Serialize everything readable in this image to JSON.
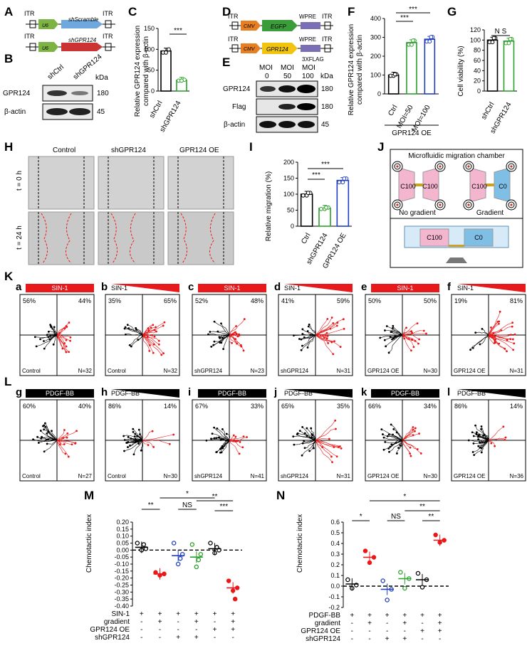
{
  "panel_letters": {
    "A": "A",
    "B": "B",
    "C": "C",
    "D": "D",
    "E": "E",
    "F": "F",
    "G": "G",
    "H": "H",
    "I": "I",
    "J": "J",
    "K": "K",
    "L": "L",
    "M": "M",
    "N": "N"
  },
  "panel_a": {
    "itr": "ITR",
    "u6": "U6",
    "construct1": "shScramble",
    "construct2": "shGPR124",
    "colors": {
      "scramble": "#6fa8dc",
      "shgpr": "#cc3333",
      "u6": "#7cb342"
    }
  },
  "panel_b": {
    "lanes": [
      "shCtrl",
      "shGPR124"
    ],
    "kda": "kDa",
    "rows": [
      {
        "label": "GPR124",
        "kda": "180"
      },
      {
        "label": "β-actin",
        "kda": "45"
      }
    ]
  },
  "panel_c": {
    "ylabel_line1": "Relative GPR124 expression",
    "ylabel_line2": "compared with β-actin",
    "yticks": [
      "0",
      "50",
      "100",
      "150"
    ],
    "categories": [
      "shCtrl",
      "shGPR124"
    ],
    "sig": "***"
  },
  "panel_d": {
    "itr": "ITR",
    "cmv": "CMV",
    "egfp": "EGFP",
    "wpre": "WPRE",
    "gpr124": "GPR124",
    "flag": "3XFLAG",
    "colors": {
      "cmv": "#e67e22",
      "egfp": "#3a9d3a",
      "gpr": "#f1c40f",
      "wpre": "#7a6fb5"
    }
  },
  "panel_e": {
    "moi_header": [
      "MOI",
      "MOI",
      "MOI"
    ],
    "moi_values": [
      "0",
      "50",
      "100"
    ],
    "kda": "kDa",
    "rows": [
      {
        "label": "GPR124",
        "kda": "180"
      },
      {
        "label": "Flag",
        "kda": "180"
      },
      {
        "label": "β-actin",
        "kda": "45"
      }
    ]
  },
  "panel_f": {
    "ylabel_line1": "Relative GPR124 expression",
    "ylabel_line2": "compared with β-actin",
    "yticks": [
      "0",
      "100",
      "200",
      "300",
      "400"
    ],
    "categories": [
      "Ctrl",
      "MOI=50",
      "MOI=100"
    ],
    "group_label": "GPR124 OE",
    "sig": [
      "***",
      "***"
    ]
  },
  "panel_g": {
    "ylabel": "Cell viability (%)",
    "yticks": [
      "0",
      "20",
      "40",
      "60",
      "80",
      "100",
      "120"
    ],
    "categories": [
      "shCtrl",
      "shGPR124"
    ],
    "sig": "N S"
  },
  "panel_h": {
    "columns": [
      "Control",
      "shGPR124",
      "GPR124 OE"
    ],
    "rows": [
      "t = 0 h",
      "t = 24 h"
    ]
  },
  "panel_i": {
    "ylabel": "Relative migration (%)",
    "yticks": [
      "0",
      "50",
      "100",
      "150",
      "200"
    ],
    "categories": [
      "Ctrl",
      "shGPR124",
      "GPR124 OE"
    ],
    "sig": [
      "***",
      "***"
    ]
  },
  "panel_j": {
    "title": "Microfluidic migration chamber",
    "c100": "C100",
    "c0": "C0",
    "no_gradient": "No gradient",
    "gradient": "Gradient"
  },
  "row_k": {
    "stimulus": "SIN-1",
    "color": "#e8191b",
    "plots": [
      {
        "id": "a",
        "left": "56%",
        "right": "44%",
        "group": "Control",
        "n": "N=32",
        "gradient": false
      },
      {
        "id": "b",
        "left": "35%",
        "right": "65%",
        "group": "Control",
        "n": "N=32",
        "gradient": true
      },
      {
        "id": "c",
        "left": "52%",
        "right": "48%",
        "group": "shGPR124",
        "n": "N=23",
        "gradient": false
      },
      {
        "id": "d",
        "left": "41%",
        "right": "59%",
        "group": "shGPR124",
        "n": "N=31",
        "gradient": true
      },
      {
        "id": "e",
        "left": "50%",
        "right": "50%",
        "group": "GPR124 OE",
        "n": "N=30",
        "gradient": false
      },
      {
        "id": "f",
        "left": "19%",
        "right": "81%",
        "group": "GPR124 OE",
        "n": "N=31",
        "gradient": true
      }
    ]
  },
  "row_l": {
    "stimulus": "PDGF-BB",
    "color": "#000000",
    "plots": [
      {
        "id": "g",
        "left": "60%",
        "right": "40%",
        "group": "Control",
        "n": "N=27",
        "gradient": false
      },
      {
        "id": "h",
        "left": "86%",
        "right": "14%",
        "group": "Control",
        "n": "N=30",
        "gradient": true
      },
      {
        "id": "i",
        "left": "67%",
        "right": "33%",
        "group": "shGPR124",
        "n": "N=41",
        "gradient": false
      },
      {
        "id": "j",
        "left": "65%",
        "right": "35%",
        "group": "shGPR124",
        "n": "N=31",
        "gradient": true
      },
      {
        "id": "k",
        "left": "66%",
        "right": "34%",
        "group": "GPR124 OE",
        "n": "N=30",
        "gradient": false
      },
      {
        "id": "l",
        "left": "86%",
        "right": "14%",
        "group": "GPR124 OE",
        "n": "N=36",
        "gradient": true
      }
    ]
  },
  "panel_m": {
    "ylabel": "Chemotactic index",
    "yticks": [
      "0.20",
      "0.15",
      "0.10",
      "0.05",
      "0.00",
      "-0.05",
      "-0.10",
      "-0.15",
      "-0.20",
      "-0.25",
      "-0.30",
      "-0.35",
      "-0.40"
    ],
    "sig": [
      "**",
      "*",
      "NS",
      "**",
      "***"
    ],
    "table_rows": [
      {
        "label": "SIN-1",
        "values": [
          "+",
          "+",
          "+",
          "+",
          "+",
          "+"
        ]
      },
      {
        "label": "gradient",
        "values": [
          "-",
          "+",
          "-",
          "+",
          "-",
          "+"
        ]
      },
      {
        "label": "GPR124 OE",
        "values": [
          "-",
          "-",
          "-",
          "-",
          "+",
          "+"
        ]
      },
      {
        "label": "shGPR124",
        "values": [
          "-",
          "-",
          "+",
          "+",
          "-",
          "-"
        ]
      }
    ]
  },
  "panel_n": {
    "ylabel": "Chemotactic index",
    "yticks": [
      "0.6",
      "0.5",
      "0.4",
      "0.3",
      "0.2",
      "0.1",
      "0.0",
      "-0.1",
      "-0.2"
    ],
    "sig": [
      "*",
      "*",
      "NS",
      "**",
      "**"
    ],
    "table_rows": [
      {
        "label": "PDGF-BB",
        "values": [
          "+",
          "+",
          "+",
          "+",
          "+",
          "+"
        ]
      },
      {
        "label": "gradient",
        "values": [
          "-",
          "+",
          "-",
          "+",
          "-",
          "+"
        ]
      },
      {
        "label": "GPR124 OE",
        "values": [
          "-",
          "-",
          "-",
          "-",
          "+",
          "+"
        ]
      },
      {
        "label": "shGPR124",
        "values": [
          "-",
          "-",
          "+",
          "+",
          "-",
          "-"
        ]
      }
    ]
  },
  "chart_data": [
    {
      "panel": "C",
      "type": "bar",
      "categories": [
        "shCtrl",
        "shGPR124"
      ],
      "values": [
        96,
        26
      ],
      "ylim": [
        0,
        150
      ],
      "ylabel": "Relative GPR124 expression compared with β-actin",
      "colors": [
        "#000000",
        "#2ca02c"
      ]
    },
    {
      "panel": "F",
      "type": "bar",
      "categories": [
        "Ctrl",
        "MOI=50",
        "MOI=100"
      ],
      "values": [
        100,
        272,
        290
      ],
      "ylim": [
        0,
        400
      ],
      "ylabel": "Relative GPR124 expression compared with β-actin",
      "colors": [
        "#000000",
        "#2ca02c",
        "#1f3fbf"
      ]
    },
    {
      "panel": "G",
      "type": "bar",
      "categories": [
        "shCtrl",
        "shGPR124"
      ],
      "values": [
        100,
        98
      ],
      "ylim": [
        0,
        120
      ],
      "ylabel": "Cell viability (%)",
      "colors": [
        "#000000",
        "#2ca02c"
      ]
    },
    {
      "panel": "I",
      "type": "bar",
      "categories": [
        "Ctrl",
        "shGPR124",
        "GPR124 OE"
      ],
      "values": [
        100,
        56,
        143
      ],
      "ylim": [
        0,
        200
      ],
      "ylabel": "Relative migration (%)",
      "colors": [
        "#000000",
        "#2ca02c",
        "#1f3fbf"
      ]
    },
    {
      "panel": "M",
      "type": "scatter",
      "ylabel": "Chemotactic index",
      "ylim": [
        -0.4,
        0.2
      ],
      "series": [
        {
          "values": [
            0.05,
            0.01,
            0.0,
            0.04
          ],
          "mean": 0.02,
          "color": "#000000"
        },
        {
          "values": [
            -0.16,
            -0.17,
            -0.18
          ],
          "mean": -0.17,
          "color": "#e8191b"
        },
        {
          "values": [
            0.05,
            -0.03,
            -0.1,
            -0.06
          ],
          "mean": -0.04,
          "color": "#1f3fbf"
        },
        {
          "values": [
            0.04,
            -0.03,
            -0.12,
            -0.07
          ],
          "mean": -0.05,
          "color": "#2ca02c"
        },
        {
          "values": [
            0.05,
            0.0,
            -0.02,
            0.02
          ],
          "mean": 0.01,
          "color": "#000000"
        },
        {
          "values": [
            -0.22,
            -0.27,
            -0.29,
            -0.35
          ],
          "mean": -0.27,
          "color": "#e8191b"
        }
      ]
    },
    {
      "panel": "N",
      "type": "scatter",
      "ylabel": "Chemotactic index",
      "ylim": [
        -0.2,
        0.6
      ],
      "series": [
        {
          "values": [
            0.06,
            0.01,
            -0.02
          ],
          "mean": 0.02,
          "color": "#000000"
        },
        {
          "values": [
            0.33,
            0.27,
            0.22
          ],
          "mean": 0.27,
          "color": "#e8191b"
        },
        {
          "values": [
            0.05,
            -0.03,
            -0.13
          ],
          "mean": -0.03,
          "color": "#1f3fbf"
        },
        {
          "values": [
            0.13,
            0.07,
            -0.02
          ],
          "mean": 0.07,
          "color": "#2ca02c"
        },
        {
          "values": [
            0.12,
            0.06,
            -0.01
          ],
          "mean": 0.06,
          "color": "#000000"
        },
        {
          "values": [
            0.48,
            0.43,
            0.41
          ],
          "mean": 0.43,
          "color": "#e8191b"
        }
      ]
    }
  ]
}
